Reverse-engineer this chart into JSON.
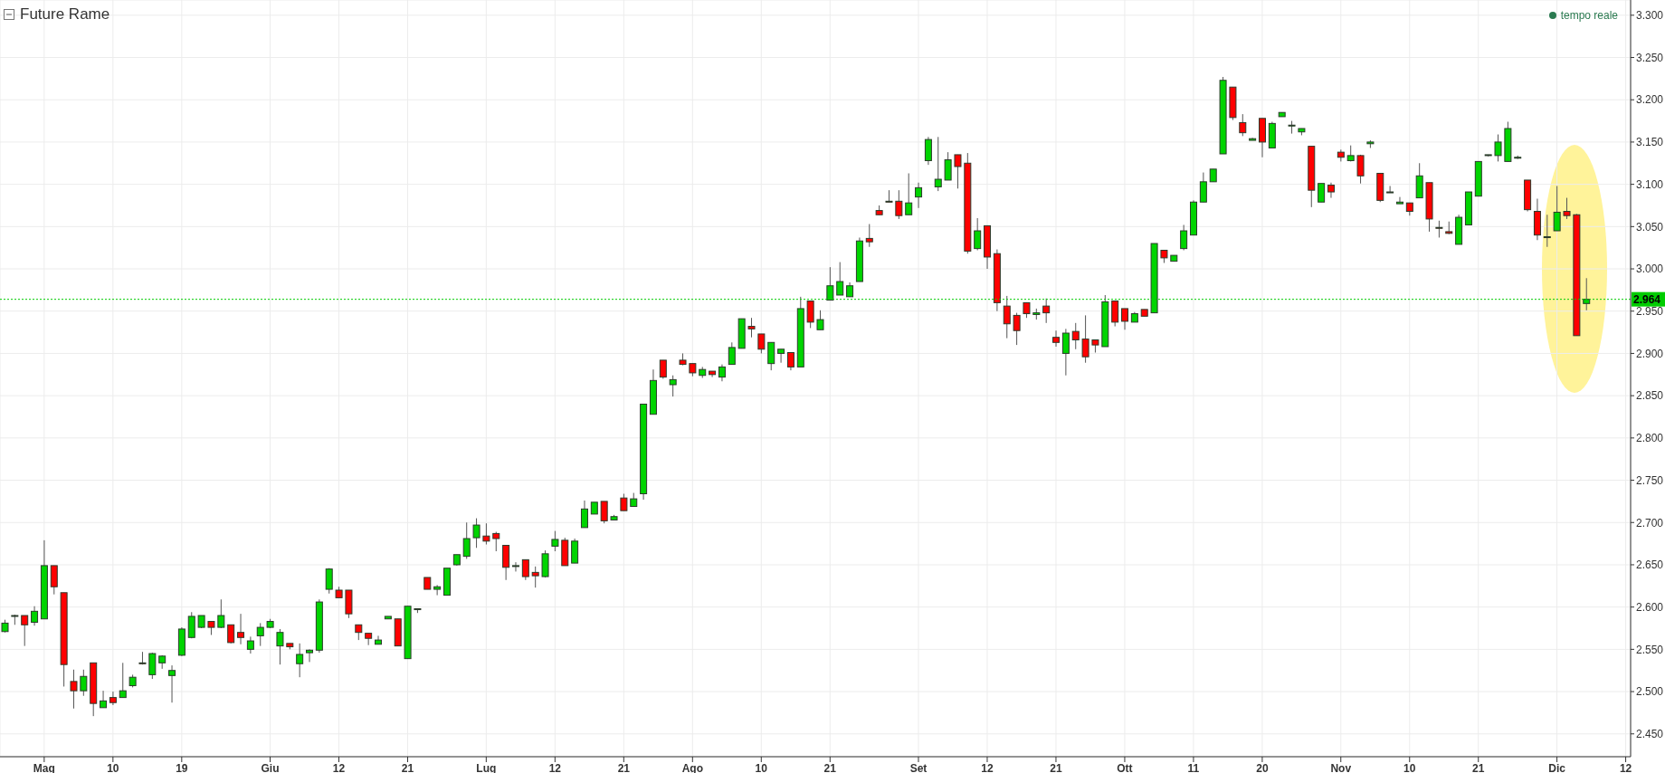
{
  "chart_data": {
    "type": "candlestick",
    "title": "Future Rame",
    "annotations": [
      "tempo reale"
    ],
    "categories": [
      null,
      null,
      null,
      null,
      "Mag",
      null,
      null,
      null,
      null,
      null,
      null,
      "10",
      null,
      null,
      null,
      null,
      null,
      null,
      "19",
      null,
      null,
      null,
      null,
      null,
      null,
      null,
      null,
      "Giu",
      null,
      null,
      null,
      null,
      null,
      null,
      "12",
      null,
      null,
      null,
      null,
      null,
      null,
      "21",
      null,
      null,
      null,
      null,
      null,
      null,
      null,
      "Lug",
      null,
      null,
      null,
      null,
      null,
      null,
      "12",
      null,
      null,
      null,
      null,
      null,
      null,
      "21",
      null,
      null,
      null,
      null,
      null,
      null,
      "Ago",
      null,
      null,
      null,
      null,
      null,
      null,
      "10",
      null,
      null,
      null,
      null,
      null,
      null,
      "21",
      null,
      null,
      null,
      null,
      null,
      null,
      null,
      null,
      "Set",
      null,
      null,
      null,
      null,
      null,
      null,
      "12",
      null,
      null,
      null,
      null,
      null,
      null,
      "21",
      null,
      null,
      null,
      null,
      null,
      null,
      "Ott",
      null,
      null,
      null,
      null,
      null,
      null,
      "11",
      null,
      null,
      null,
      null,
      null,
      null,
      "20",
      null,
      null,
      null,
      null,
      null,
      null,
      null,
      "Nov",
      null,
      null,
      null,
      null,
      null,
      null,
      "10",
      null,
      null,
      null,
      null,
      null,
      null,
      "21",
      null,
      null,
      null,
      null,
      null,
      null,
      null,
      "Dic",
      null,
      null,
      null,
      null,
      null,
      null,
      "12"
    ],
    "ohlc": [
      [
        2.571,
        2.585,
        2.57,
        2.581
      ],
      [
        2.59,
        2.591,
        2.579,
        2.59
      ],
      [
        2.59,
        2.59,
        2.554,
        2.579
      ],
      [
        2.582,
        2.601,
        2.578,
        2.595
      ],
      [
        2.586,
        2.679,
        2.586,
        2.649
      ],
      [
        2.649,
        2.649,
        2.615,
        2.624
      ],
      [
        2.617,
        2.617,
        2.506,
        2.532
      ],
      [
        2.512,
        2.526,
        2.48,
        2.501
      ],
      [
        2.501,
        2.526,
        2.495,
        2.518
      ],
      [
        2.534,
        2.534,
        2.471,
        2.486
      ],
      [
        2.481,
        2.501,
        2.481,
        2.489
      ],
      [
        2.493,
        2.5,
        2.484,
        2.487
      ],
      [
        2.493,
        2.534,
        2.493,
        2.501
      ],
      [
        2.507,
        2.52,
        2.505,
        2.517
      ],
      [
        2.534,
        2.547,
        2.532,
        2.533
      ],
      [
        2.52,
        2.546,
        2.515,
        2.545
      ],
      [
        2.534,
        2.543,
        2.527,
        2.542
      ],
      [
        2.519,
        2.531,
        2.487,
        2.525
      ],
      [
        2.543,
        2.576,
        2.542,
        2.574
      ],
      [
        2.564,
        2.594,
        2.563,
        2.589
      ],
      [
        2.576,
        2.59,
        2.575,
        2.59
      ],
      [
        2.583,
        2.583,
        2.567,
        2.576
      ],
      [
        2.576,
        2.609,
        2.575,
        2.59
      ],
      [
        2.579,
        2.579,
        2.557,
        2.558
      ],
      [
        2.57,
        2.592,
        2.556,
        2.564
      ],
      [
        2.55,
        2.565,
        2.545,
        2.56
      ],
      [
        2.566,
        2.581,
        2.554,
        2.576
      ],
      [
        2.576,
        2.586,
        2.575,
        2.583
      ],
      [
        2.554,
        2.574,
        2.532,
        2.57
      ],
      [
        2.557,
        2.557,
        2.55,
        2.553
      ],
      [
        2.533,
        2.557,
        2.517,
        2.544
      ],
      [
        2.546,
        2.55,
        2.535,
        2.549
      ],
      [
        2.549,
        2.609,
        2.546,
        2.606
      ],
      [
        2.621,
        2.646,
        2.616,
        2.645
      ],
      [
        2.62,
        2.624,
        2.611,
        2.611
      ],
      [
        2.62,
        2.62,
        2.587,
        2.592
      ],
      [
        2.579,
        2.579,
        2.561,
        2.57
      ],
      [
        2.569,
        2.569,
        2.555,
        2.563
      ],
      [
        2.556,
        2.566,
        2.556,
        2.561
      ],
      [
        2.586,
        2.589,
        2.586,
        2.589
      ],
      [
        2.586,
        2.586,
        2.554,
        2.554
      ],
      [
        2.539,
        2.601,
        2.539,
        2.601
      ],
      [
        2.598,
        2.598,
        2.593,
        2.597
      ],
      [
        2.635,
        2.635,
        2.621,
        2.621
      ],
      [
        2.621,
        2.626,
        2.614,
        2.624
      ],
      [
        2.614,
        2.646,
        2.614,
        2.646
      ],
      [
        2.65,
        2.662,
        2.649,
        2.662
      ],
      [
        2.66,
        2.7,
        2.657,
        2.681
      ],
      [
        2.682,
        2.705,
        2.67,
        2.697
      ],
      [
        2.684,
        2.699,
        2.674,
        2.678
      ],
      [
        2.687,
        2.689,
        2.666,
        2.681
      ],
      [
        2.673,
        2.673,
        2.632,
        2.647
      ],
      [
        2.648,
        2.653,
        2.642,
        2.649
      ],
      [
        2.656,
        2.656,
        2.632,
        2.636
      ],
      [
        2.641,
        2.648,
        2.623,
        2.637
      ],
      [
        2.636,
        2.667,
        2.635,
        2.663
      ],
      [
        2.672,
        2.69,
        2.666,
        2.68
      ],
      [
        2.679,
        2.682,
        2.649,
        2.649
      ],
      [
        2.652,
        2.681,
        2.652,
        2.678
      ],
      [
        2.694,
        2.726,
        2.694,
        2.716
      ],
      [
        2.71,
        2.724,
        2.71,
        2.724
      ],
      [
        2.725,
        2.725,
        2.699,
        2.702
      ],
      [
        2.703,
        2.709,
        2.703,
        2.707
      ],
      [
        2.729,
        2.734,
        2.714,
        2.714
      ],
      [
        2.719,
        2.735,
        2.719,
        2.728
      ],
      [
        2.734,
        2.84,
        2.727,
        2.84
      ],
      [
        2.828,
        2.881,
        2.828,
        2.868
      ],
      [
        2.892,
        2.892,
        2.87,
        2.872
      ],
      [
        2.863,
        2.874,
        2.849,
        2.869
      ],
      [
        2.892,
        2.9,
        2.886,
        2.887
      ],
      [
        2.888,
        2.888,
        2.873,
        2.877
      ],
      [
        2.874,
        2.884,
        2.871,
        2.881
      ],
      [
        2.879,
        2.879,
        2.872,
        2.875
      ],
      [
        2.872,
        2.887,
        2.867,
        2.884
      ],
      [
        2.887,
        2.913,
        2.887,
        2.907
      ],
      [
        2.906,
        2.941,
        2.906,
        2.941
      ],
      [
        2.932,
        2.942,
        2.919,
        2.929
      ],
      [
        2.923,
        2.923,
        2.9,
        2.905
      ],
      [
        2.888,
        2.913,
        2.88,
        2.913
      ],
      [
        2.9,
        2.905,
        2.889,
        2.905
      ],
      [
        2.901,
        2.901,
        2.88,
        2.884
      ],
      [
        2.884,
        2.967,
        2.884,
        2.953
      ],
      [
        2.962,
        2.962,
        2.93,
        2.937
      ],
      [
        2.928,
        2.951,
        2.928,
        2.94
      ],
      [
        2.963,
        3.002,
        2.963,
        2.98
      ],
      [
        2.969,
        3.008,
        2.969,
        2.985
      ],
      [
        2.967,
        2.984,
        2.967,
        2.98
      ],
      [
        2.985,
        3.037,
        2.985,
        3.033
      ],
      [
        3.036,
        3.053,
        3.026,
        3.032
      ],
      [
        3.069,
        3.075,
        3.064,
        3.064
      ],
      [
        3.08,
        3.093,
        3.079,
        3.08
      ],
      [
        3.08,
        3.093,
        3.059,
        3.063
      ],
      [
        3.064,
        3.113,
        3.064,
        3.078
      ],
      [
        3.085,
        3.102,
        3.072,
        3.096
      ],
      [
        3.128,
        3.156,
        3.123,
        3.153
      ],
      [
        3.097,
        3.156,
        3.092,
        3.106
      ],
      [
        3.105,
        3.138,
        3.105,
        3.129
      ],
      [
        3.135,
        3.135,
        3.095,
        3.121
      ],
      [
        3.125,
        3.137,
        3.018,
        3.021
      ],
      [
        3.024,
        3.06,
        3.022,
        3.045
      ],
      [
        3.051,
        3.051,
        3.0,
        3.014
      ],
      [
        3.018,
        3.023,
        2.95,
        2.96
      ],
      [
        2.956,
        2.968,
        2.918,
        2.935
      ],
      [
        2.945,
        2.948,
        2.91,
        2.927
      ],
      [
        2.96,
        2.96,
        2.942,
        2.947
      ],
      [
        2.946,
        2.953,
        2.94,
        2.948
      ],
      [
        2.956,
        2.965,
        2.936,
        2.948
      ],
      [
        2.919,
        2.927,
        2.908,
        2.913
      ],
      [
        2.9,
        2.929,
        2.874,
        2.924
      ],
      [
        2.926,
        2.936,
        2.905,
        2.916
      ],
      [
        2.917,
        2.945,
        2.889,
        2.896
      ],
      [
        2.916,
        2.916,
        2.901,
        2.91
      ],
      [
        2.908,
        2.969,
        2.908,
        2.961
      ],
      [
        2.962,
        2.962,
        2.932,
        2.937
      ],
      [
        2.953,
        2.953,
        2.928,
        2.938
      ],
      [
        2.937,
        2.949,
        2.937,
        2.947
      ],
      [
        2.952,
        2.952,
        2.944,
        2.944
      ],
      [
        2.948,
        3.03,
        2.948,
        3.03
      ],
      [
        3.022,
        3.022,
        3.007,
        3.013
      ],
      [
        3.009,
        3.016,
        3.009,
        3.016
      ],
      [
        3.024,
        3.052,
        3.022,
        3.045
      ],
      [
        3.04,
        3.081,
        3.04,
        3.079
      ],
      [
        3.079,
        3.114,
        3.079,
        3.103
      ],
      [
        3.103,
        3.118,
        3.103,
        3.118
      ],
      [
        3.136,
        3.227,
        3.136,
        3.223
      ],
      [
        3.215,
        3.215,
        3.176,
        3.179
      ],
      [
        3.173,
        3.183,
        3.157,
        3.161
      ],
      [
        3.152,
        3.155,
        3.152,
        3.154
      ],
      [
        3.178,
        3.178,
        3.132,
        3.15
      ],
      [
        3.143,
        3.174,
        3.143,
        3.172
      ],
      [
        3.18,
        3.185,
        3.18,
        3.185
      ],
      [
        3.169,
        3.175,
        3.16,
        3.17
      ],
      [
        3.162,
        3.166,
        3.158,
        3.166
      ],
      [
        3.145,
        3.145,
        3.073,
        3.093
      ],
      [
        3.079,
        3.101,
        3.079,
        3.101
      ],
      [
        3.099,
        3.102,
        3.084,
        3.091
      ],
      [
        3.138,
        3.141,
        3.127,
        3.132
      ],
      [
        3.128,
        3.146,
        3.127,
        3.134
      ],
      [
        3.134,
        3.135,
        3.101,
        3.11
      ],
      [
        3.148,
        3.152,
        3.143,
        3.15
      ],
      [
        3.113,
        3.113,
        3.079,
        3.081
      ],
      [
        3.091,
        3.098,
        3.091,
        3.091
      ],
      [
        3.077,
        3.085,
        3.077,
        3.079
      ],
      [
        3.078,
        3.078,
        3.063,
        3.068
      ],
      [
        3.084,
        3.125,
        3.084,
        3.11
      ],
      [
        3.102,
        3.102,
        3.044,
        3.059
      ],
      [
        3.049,
        3.057,
        3.037,
        3.048
      ],
      [
        3.044,
        3.056,
        3.041,
        3.042
      ],
      [
        3.029,
        3.064,
        3.029,
        3.061
      ],
      [
        3.052,
        3.091,
        3.052,
        3.091
      ],
      [
        3.086,
        3.127,
        3.086,
        3.127
      ],
      [
        3.134,
        3.135,
        3.133,
        3.135
      ],
      [
        3.134,
        3.159,
        3.127,
        3.15
      ],
      [
        3.127,
        3.174,
        3.127,
        3.166
      ],
      [
        3.132,
        3.134,
        3.13,
        3.132
      ],
      [
        3.105,
        3.105,
        3.068,
        3.07
      ],
      [
        3.068,
        3.083,
        3.034,
        3.04
      ],
      [
        3.037,
        3.064,
        3.026,
        3.038
      ],
      [
        3.045,
        3.098,
        3.045,
        3.067
      ],
      [
        3.068,
        3.084,
        3.059,
        3.063
      ],
      [
        3.064,
        3.065,
        2.921,
        2.921
      ],
      [
        2.959,
        2.989,
        2.951,
        2.964
      ],
      null,
      null,
      null,
      null
    ],
    "colors": [
      "#00d400",
      "#00d400",
      "#ff0000",
      "#00d400",
      "#00d400",
      "#ff0000",
      "#ff0000",
      "#ff0000",
      "#00d400",
      "#ff0000",
      "#00d400",
      "#ff0000",
      "#00d400",
      "#00d400",
      "#ff0000",
      "#00d400",
      "#00d400",
      "#00d400",
      "#00d400",
      "#00d400",
      "#00d400",
      "#ff0000",
      "#00d400",
      "#ff0000",
      "#ff0000",
      "#00d400",
      "#00d400",
      "#00d400",
      "#00d400",
      "#ff0000",
      "#00d400",
      "#00d400",
      "#00d400",
      "#00d400",
      "#ff0000",
      "#ff0000",
      "#ff0000",
      "#ff0000",
      "#00d400",
      "#00d400",
      "#ff0000",
      "#00d400",
      "#ff0000",
      "#ff0000",
      "#00d400",
      "#00d400",
      "#00d400",
      "#00d400",
      "#00d400",
      "#ff0000",
      "#ff0000",
      "#ff0000",
      "#00d400",
      "#ff0000",
      "#ff0000",
      "#00d400",
      "#00d400",
      "#ff0000",
      "#00d400",
      "#00d400",
      "#00d400",
      "#ff0000",
      "#00d400",
      "#ff0000",
      "#00d400",
      "#00d400",
      "#00d400",
      "#ff0000",
      "#00d400",
      "#ff0000",
      "#ff0000",
      "#00d400",
      "#ff0000",
      "#00d400",
      "#00d400",
      "#00d400",
      "#ff0000",
      "#ff0000",
      "#00d400",
      "#00d400",
      "#ff0000",
      "#00d400",
      "#ff0000",
      "#00d400",
      "#00d400",
      "#00d400",
      "#00d400",
      "#00d400",
      "#ff0000",
      "#ff0000",
      "#ff0000",
      "#ff0000",
      "#00d400",
      "#00d400",
      "#00d400",
      "#00d400",
      "#00d400",
      "#ff0000",
      "#ff0000",
      "#00d400",
      "#ff0000",
      "#ff0000",
      "#ff0000",
      "#ff0000",
      "#ff0000",
      "#00d400",
      "#ff0000",
      "#ff0000",
      "#00d400",
      "#ff0000",
      "#ff0000",
      "#ff0000",
      "#00d400",
      "#ff0000",
      "#ff0000",
      "#00d400",
      "#ff0000",
      "#00d400",
      "#ff0000",
      "#00d400",
      "#00d400",
      "#00d400",
      "#00d400",
      "#00d400",
      "#00d400",
      "#ff0000",
      "#ff0000",
      "#00d400",
      "#ff0000",
      "#00d400",
      "#00d400",
      "#00d400",
      "#00d400",
      "#ff0000",
      "#00d400",
      "#ff0000",
      "#ff0000",
      "#00d400",
      "#ff0000",
      "#00d400",
      "#ff0000",
      "#00d400",
      "#00d400",
      "#ff0000",
      "#00d400",
      "#ff0000",
      "#ff0000",
      "#ff0000",
      "#00d400",
      "#00d400",
      "#00d400",
      "#00d400",
      "#00d400",
      "#00d400",
      "#00d400",
      "#ff0000",
      "#ff0000",
      "#00d400",
      "#00d400",
      "#ff0000",
      "#ff0000",
      "#00d400",
      null,
      null,
      null,
      null
    ],
    "ylim": [
      2.423,
      3.318
    ],
    "yticks": [
      {
        "value": 2.45,
        "label": "2.450"
      },
      {
        "value": 2.5,
        "label": "2.500"
      },
      {
        "value": 2.55,
        "label": "2.550"
      },
      {
        "value": 2.6,
        "label": "2.600"
      },
      {
        "value": 2.65,
        "label": "2.650"
      },
      {
        "value": 2.7,
        "label": "2.700"
      },
      {
        "value": 2.75,
        "label": "2.750"
      },
      {
        "value": 2.8,
        "label": "2.800"
      },
      {
        "value": 2.85,
        "label": "2.850"
      },
      {
        "value": 2.9,
        "label": "2.900"
      },
      {
        "value": 2.95,
        "label": "2.950"
      },
      {
        "value": 3.0,
        "label": "3.000"
      },
      {
        "value": 3.05,
        "label": "3.050"
      },
      {
        "value": 3.1,
        "label": "3.100"
      },
      {
        "value": 3.15,
        "label": "3.150"
      },
      {
        "value": 3.2,
        "label": "3.200"
      },
      {
        "value": 3.25,
        "label": "3.250"
      },
      {
        "value": 3.3,
        "label": "3.300"
      }
    ],
    "grid": true,
    "ref_lines": [
      {
        "axis": "y",
        "value": 2.964,
        "label": "2.964",
        "color": "#00cc00",
        "line_style": "dotted"
      }
    ]
  }
}
